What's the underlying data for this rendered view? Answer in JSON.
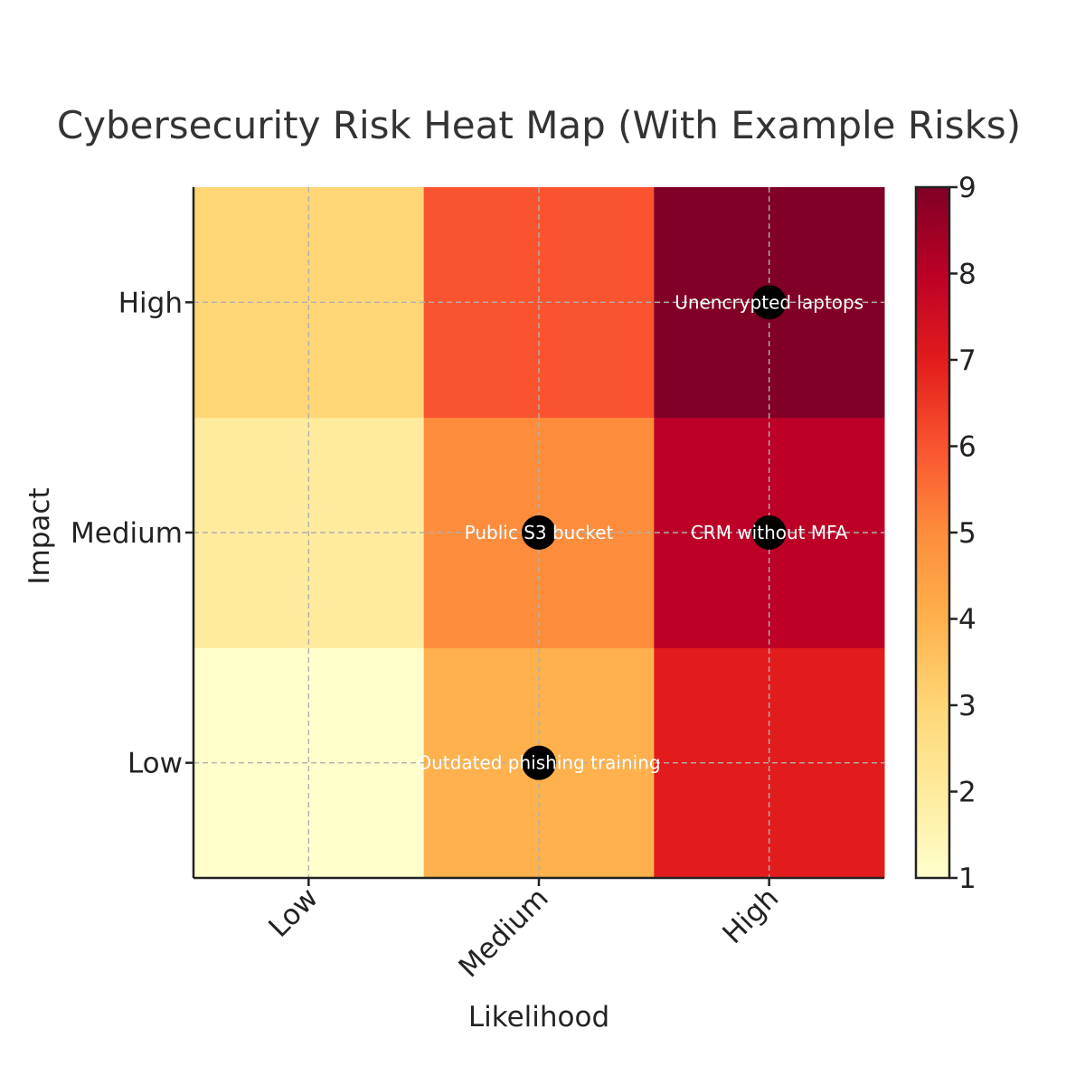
{
  "chart_data": {
    "type": "heatmap",
    "title": "Cybersecurity Risk Heat Map (With Example Risks)",
    "xlabel": "Likelihood",
    "ylabel": "Impact",
    "x_categories": [
      "Low",
      "Medium",
      "High"
    ],
    "y_categories": [
      "Low",
      "Medium",
      "High"
    ],
    "values": [
      [
        1,
        4,
        7
      ],
      [
        2,
        5,
        8
      ],
      [
        3,
        6,
        9
      ]
    ],
    "colorbar": {
      "min": 1,
      "max": 9,
      "ticks": [
        "1",
        "2",
        "3",
        "4",
        "5",
        "6",
        "7",
        "8",
        "9"
      ],
      "colormap": "YlOrRd"
    },
    "grid": true,
    "points": [
      {
        "label": "Unencrypted laptops",
        "x": "High",
        "y": "High"
      },
      {
        "label": "Public S3 bucket",
        "x": "Medium",
        "y": "Medium"
      },
      {
        "label": "CRM without MFA",
        "x": "High",
        "y": "Medium"
      },
      {
        "label": "Outdated phishing training",
        "x": "Medium",
        "y": "Low"
      }
    ],
    "colors": {
      "1": "#ffffcc",
      "2": "#feeb9e",
      "3": "#fed676",
      "4": "#feb14c",
      "5": "#fd8d3c",
      "6": "#fa5330",
      "7": "#e21c1c",
      "8": "#bc0026",
      "9": "#800026",
      "marker": "#000000"
    }
  }
}
